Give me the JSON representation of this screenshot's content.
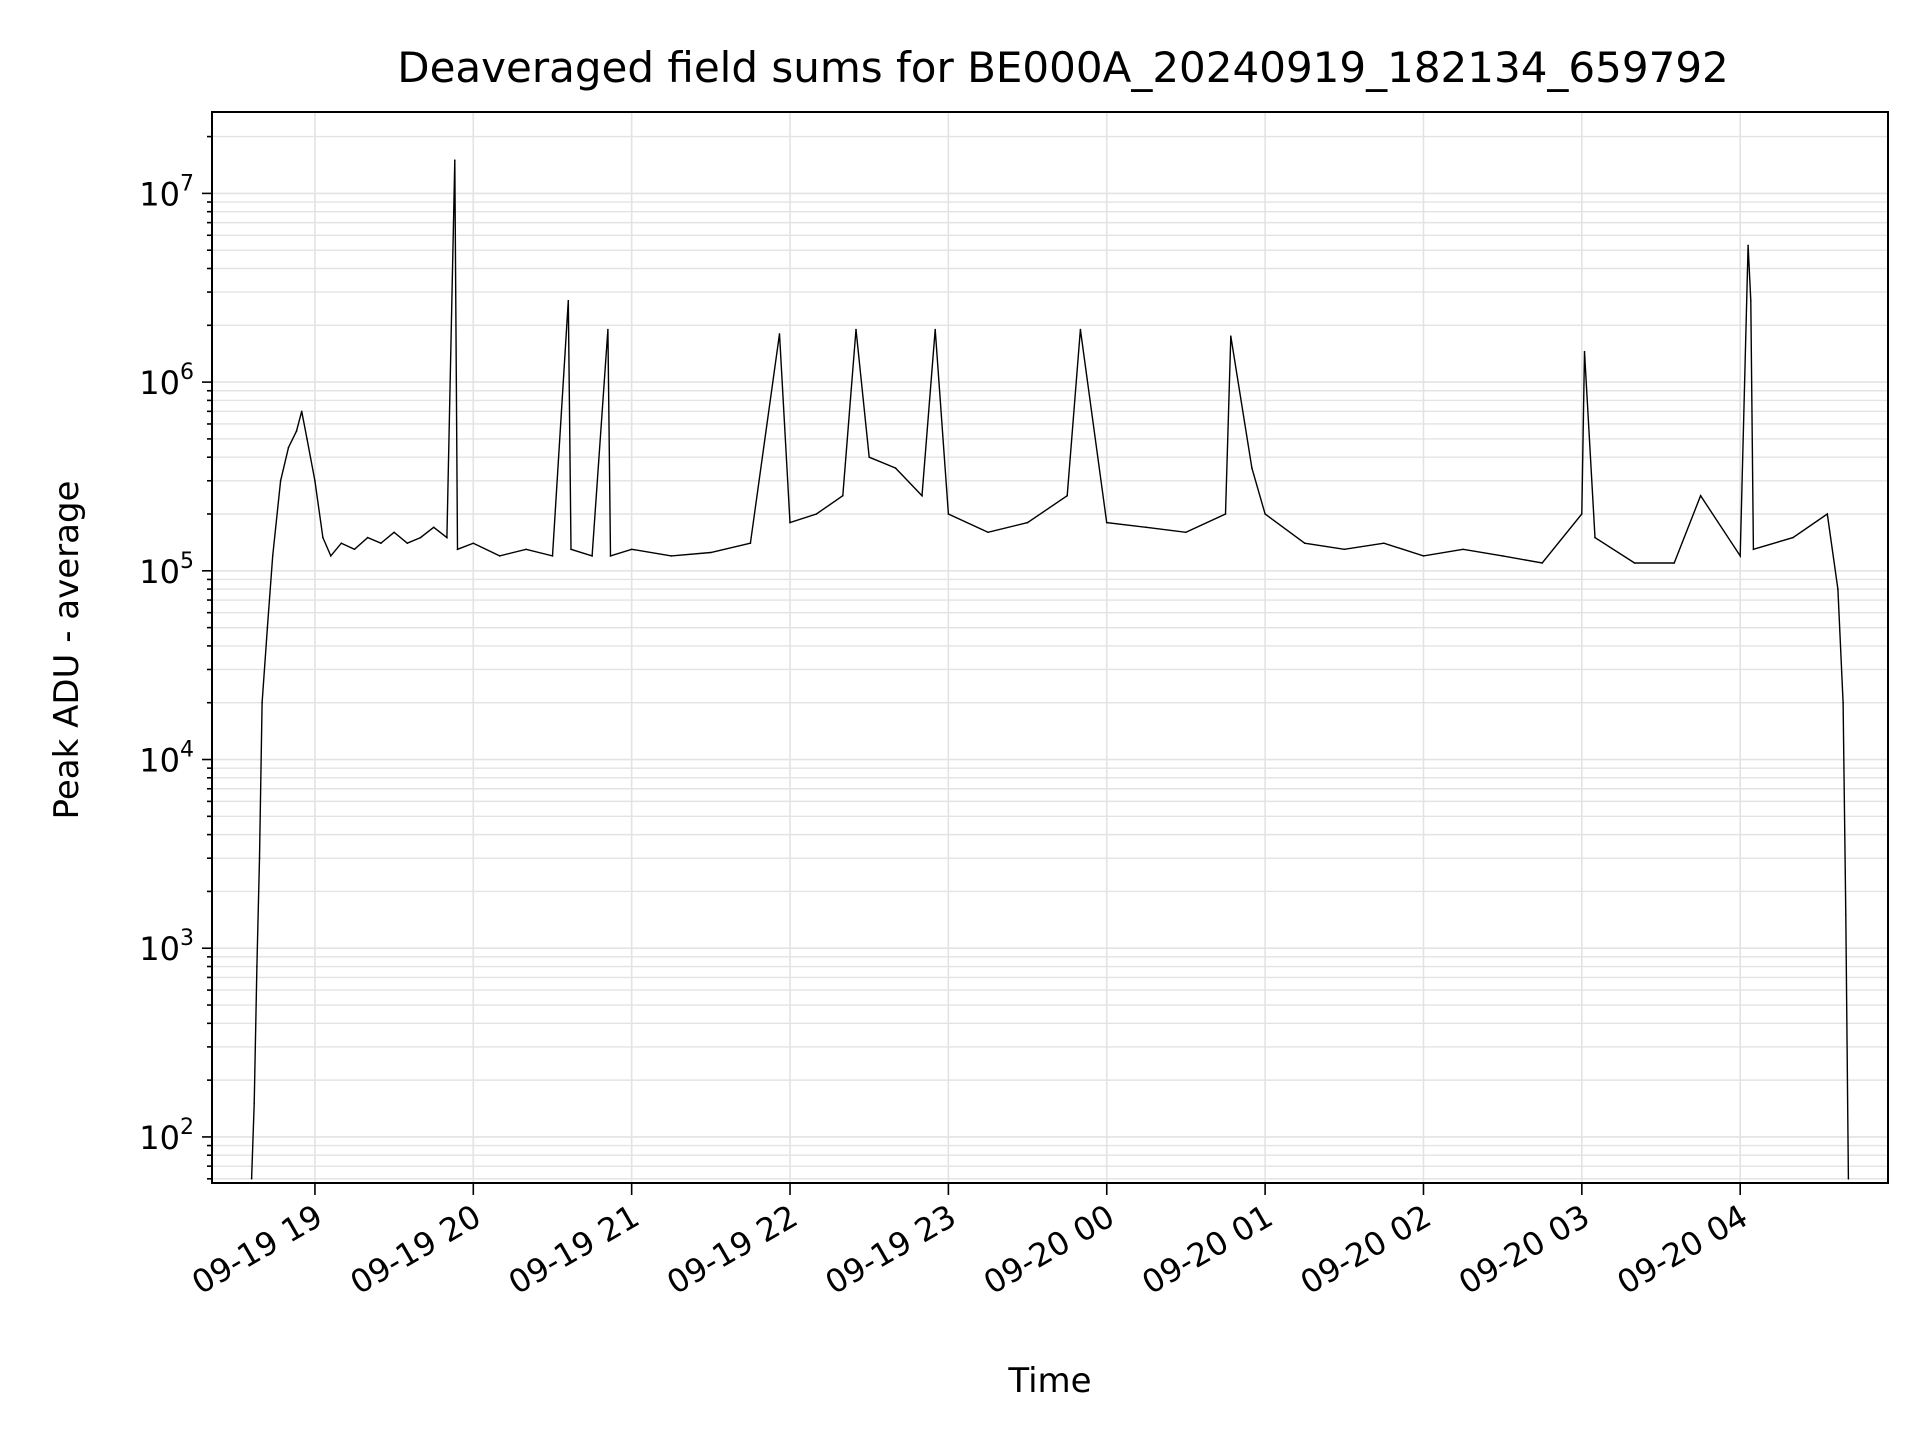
{
  "chart_data": {
    "type": "line",
    "title": "Deaveraged field sums for BE000A_20240919_182134_659792",
    "xlabel": "Time",
    "ylabel": "Peak ADU - average",
    "yscale": "log",
    "ylim": [
      57,
      27000000
    ],
    "xlim": [
      "2024-09-19 18:21",
      "2024-09-20 04:56"
    ],
    "grid": true,
    "line_color": "#000000",
    "x_ticks": [
      {
        "t": "2024-09-19 19:00",
        "label": "09-19 19"
      },
      {
        "t": "2024-09-19 20:00",
        "label": "09-19 20"
      },
      {
        "t": "2024-09-19 21:00",
        "label": "09-19 21"
      },
      {
        "t": "2024-09-19 22:00",
        "label": "09-19 22"
      },
      {
        "t": "2024-09-19 23:00",
        "label": "09-19 23"
      },
      {
        "t": "2024-09-20 00:00",
        "label": "09-20 00"
      },
      {
        "t": "2024-09-20 01:00",
        "label": "09-20 01"
      },
      {
        "t": "2024-09-20 02:00",
        "label": "09-20 02"
      },
      {
        "t": "2024-09-20 03:00",
        "label": "09-20 03"
      },
      {
        "t": "2024-09-20 04:00",
        "label": "09-20 04"
      }
    ],
    "y_ticks": [
      {
        "value": 100,
        "base": "10",
        "exp": "2"
      },
      {
        "value": 1000,
        "base": "10",
        "exp": "3"
      },
      {
        "value": 10000,
        "base": "10",
        "exp": "4"
      },
      {
        "value": 100000,
        "base": "10",
        "exp": "5"
      },
      {
        "value": 1000000,
        "base": "10",
        "exp": "6"
      },
      {
        "value": 10000000,
        "base": "10",
        "exp": "7"
      }
    ],
    "series": [
      {
        "points": [
          [
            "2024-09-19 18:36",
            60
          ],
          [
            "2024-09-19 18:37",
            150
          ],
          [
            "2024-09-19 18:38",
            800
          ],
          [
            "2024-09-19 18:39",
            3000
          ],
          [
            "2024-09-19 18:40",
            20000
          ],
          [
            "2024-09-19 18:42",
            50000
          ],
          [
            "2024-09-19 18:44",
            120000
          ],
          [
            "2024-09-19 18:47",
            300000
          ],
          [
            "2024-09-19 18:50",
            450000
          ],
          [
            "2024-09-19 18:53",
            550000
          ],
          [
            "2024-09-19 18:55",
            700000
          ],
          [
            "2024-09-19 18:57",
            500000
          ],
          [
            "2024-09-19 19:00",
            300000
          ],
          [
            "2024-09-19 19:03",
            150000
          ],
          [
            "2024-09-19 19:06",
            120000
          ],
          [
            "2024-09-19 19:10",
            140000
          ],
          [
            "2024-09-19 19:15",
            130000
          ],
          [
            "2024-09-19 19:20",
            150000
          ],
          [
            "2024-09-19 19:25",
            140000
          ],
          [
            "2024-09-19 19:30",
            160000
          ],
          [
            "2024-09-19 19:35",
            140000
          ],
          [
            "2024-09-19 19:40",
            150000
          ],
          [
            "2024-09-19 19:45",
            170000
          ],
          [
            "2024-09-19 19:50",
            150000
          ],
          [
            "2024-09-19 19:53",
            15000000
          ],
          [
            "2024-09-19 19:54",
            130000
          ],
          [
            "2024-09-19 20:00",
            140000
          ],
          [
            "2024-09-19 20:10",
            120000
          ],
          [
            "2024-09-19 20:20",
            130000
          ],
          [
            "2024-09-19 20:30",
            120000
          ],
          [
            "2024-09-19 20:36",
            2700000
          ],
          [
            "2024-09-19 20:37",
            130000
          ],
          [
            "2024-09-19 20:45",
            120000
          ],
          [
            "2024-09-19 20:51",
            1900000
          ],
          [
            "2024-09-19 20:52",
            120000
          ],
          [
            "2024-09-19 21:00",
            130000
          ],
          [
            "2024-09-19 21:15",
            120000
          ],
          [
            "2024-09-19 21:30",
            125000
          ],
          [
            "2024-09-19 21:45",
            140000
          ],
          [
            "2024-09-19 21:56",
            1800000
          ],
          [
            "2024-09-19 22:00",
            180000
          ],
          [
            "2024-09-19 22:10",
            200000
          ],
          [
            "2024-09-19 22:20",
            250000
          ],
          [
            "2024-09-19 22:25",
            1900000
          ],
          [
            "2024-09-19 22:30",
            400000
          ],
          [
            "2024-09-19 22:40",
            350000
          ],
          [
            "2024-09-19 22:50",
            250000
          ],
          [
            "2024-09-19 22:55",
            1900000
          ],
          [
            "2024-09-19 23:00",
            200000
          ],
          [
            "2024-09-19 23:15",
            160000
          ],
          [
            "2024-09-19 23:30",
            180000
          ],
          [
            "2024-09-19 23:45",
            250000
          ],
          [
            "2024-09-19 23:50",
            1900000
          ],
          [
            "2024-09-20 00:00",
            180000
          ],
          [
            "2024-09-20 00:15",
            170000
          ],
          [
            "2024-09-20 00:30",
            160000
          ],
          [
            "2024-09-20 00:45",
            200000
          ],
          [
            "2024-09-20 00:47",
            1750000
          ],
          [
            "2024-09-20 00:55",
            350000
          ],
          [
            "2024-09-20 01:00",
            200000
          ],
          [
            "2024-09-20 01:15",
            140000
          ],
          [
            "2024-09-20 01:30",
            130000
          ],
          [
            "2024-09-20 01:45",
            140000
          ],
          [
            "2024-09-20 02:00",
            120000
          ],
          [
            "2024-09-20 02:15",
            130000
          ],
          [
            "2024-09-20 02:30",
            120000
          ],
          [
            "2024-09-20 02:45",
            110000
          ],
          [
            "2024-09-20 03:00",
            200000
          ],
          [
            "2024-09-20 03:01",
            1450000
          ],
          [
            "2024-09-20 03:05",
            150000
          ],
          [
            "2024-09-20 03:20",
            110000
          ],
          [
            "2024-09-20 03:35",
            110000
          ],
          [
            "2024-09-20 03:45",
            250000
          ],
          [
            "2024-09-20 04:00",
            120000
          ],
          [
            "2024-09-20 04:03",
            5300000
          ],
          [
            "2024-09-20 04:04",
            2700000
          ],
          [
            "2024-09-20 04:05",
            130000
          ],
          [
            "2024-09-20 04:20",
            150000
          ],
          [
            "2024-09-20 04:33",
            200000
          ],
          [
            "2024-09-20 04:37",
            80000
          ],
          [
            "2024-09-20 04:39",
            20000
          ],
          [
            "2024-09-20 04:40",
            1500
          ],
          [
            "2024-09-20 04:41",
            60
          ]
        ]
      }
    ]
  }
}
